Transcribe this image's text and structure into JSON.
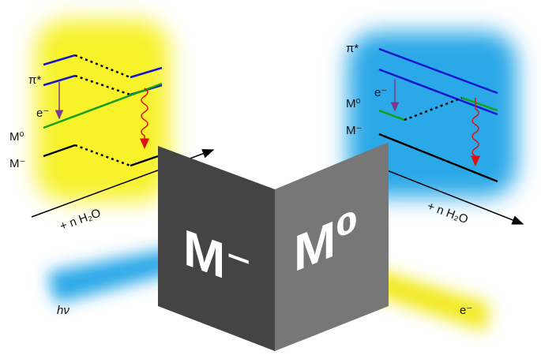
{
  "left_diagram": {
    "pi_star": "π*",
    "electron": "e⁻",
    "m0": "M⁰",
    "m_minus": "M⁻",
    "axis_label": "+ n H₂O"
  },
  "right_diagram": {
    "pi_star": "π*",
    "electron": "e⁻",
    "m0": "M⁰",
    "m_minus": "M⁻",
    "axis_label": "+ n H₂O"
  },
  "panels": {
    "left": "M⁻",
    "right": "M⁰"
  },
  "beams": {
    "photon": "hν",
    "electron": "e⁻"
  }
}
